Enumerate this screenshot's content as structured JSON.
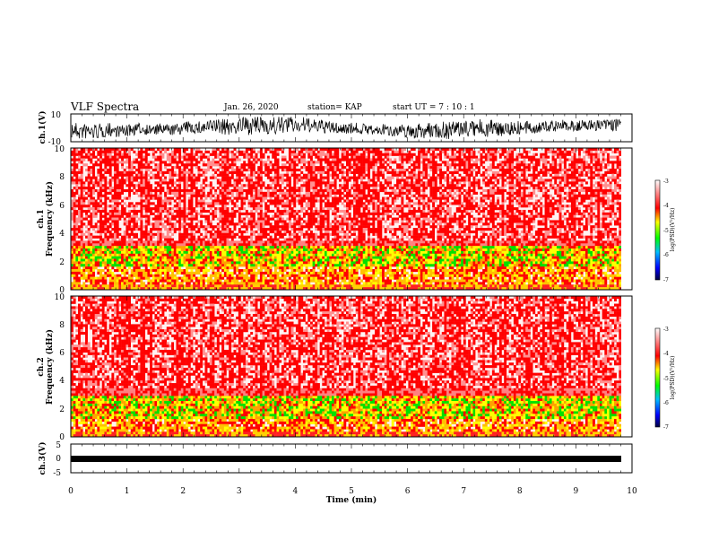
{
  "header": {
    "title": "VLF Spectra",
    "date": "Jan. 26, 2020",
    "station": "station= KAP",
    "start": "start  UT  =   7 : 10 : 1"
  },
  "chart_data": [
    {
      "type": "line",
      "ylabel": "ch.1(V)",
      "xlim": [
        0,
        10
      ],
      "ylim": [
        -10,
        10
      ],
      "yticks": [
        "10",
        "-10"
      ],
      "description_of_signal": "dense noisy waveform"
    },
    {
      "type": "heatmap",
      "ylabel": "ch.1\nFrequency (kHz)",
      "ylabel_line1": "ch.1",
      "ylabel_line2": "Frequency (kHz)",
      "xlim": [
        0,
        10
      ],
      "ylim": [
        0,
        10
      ],
      "yticks": [
        "0",
        "2",
        "4",
        "6",
        "8",
        "10"
      ],
      "colorbar": {
        "label": "log(PSD)(V²/Hz)",
        "ticks": [
          "-3",
          "-4",
          "-5",
          "-6",
          "-7"
        ],
        "range": [
          -7,
          -3
        ]
      }
    },
    {
      "type": "heatmap",
      "ylabel_line1": "ch.2",
      "ylabel_line2": "Frequency (kHz)",
      "xlim": [
        0,
        10
      ],
      "ylim": [
        0,
        10
      ],
      "yticks": [
        "0",
        "2",
        "4",
        "6",
        "8",
        "10"
      ],
      "colorbar": {
        "label": "log(PSD)(V²/Hz)",
        "ticks": [
          "-3",
          "-4",
          "-5",
          "-6",
          "-7"
        ],
        "range": [
          -7,
          -3
        ]
      }
    },
    {
      "type": "line",
      "ylabel": "ch.3(V)",
      "xlim": [
        0,
        10
      ],
      "ylim": [
        -5,
        5
      ],
      "yticks": [
        "5",
        "0",
        "-5"
      ]
    }
  ],
  "xaxis": {
    "label": "Time (min)",
    "ticks": [
      "0",
      "1",
      "2",
      "3",
      "4",
      "5",
      "6",
      "7",
      "8",
      "9",
      "10"
    ]
  },
  "colors": {
    "band_red": "#ff0000",
    "band_yellow": "#ffff00",
    "band_green": "#00e000"
  }
}
